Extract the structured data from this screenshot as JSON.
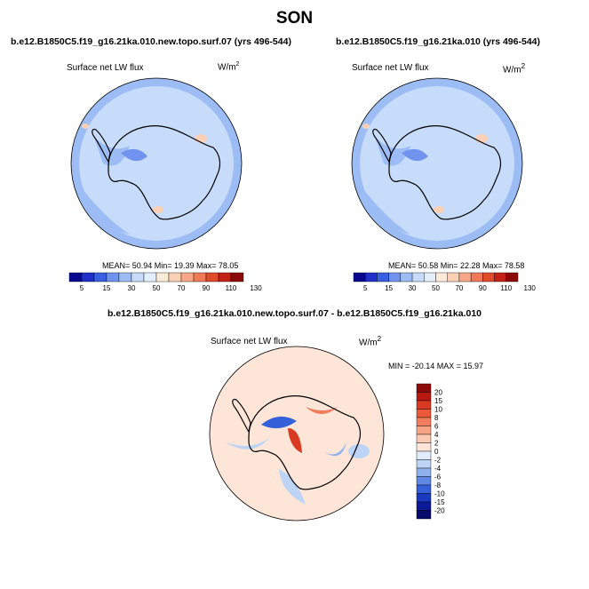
{
  "figure": {
    "title": "SON"
  },
  "panels": [
    {
      "title": "b.e12.B1850C5.f19_g16.21ka.010.new.topo.surf.07 (yrs 496-544)",
      "variable": "Surface net LW flux",
      "units_base": "W/m",
      "units_exp": "2",
      "stats": "MEAN=  50.94  Min=  19.39  Max=  78.05"
    },
    {
      "title": "b.e12.B1850C5.f19_g16.21ka.010 (yrs 496-544)",
      "variable": "Surface net LW flux",
      "units_base": "W/m",
      "units_exp": "2",
      "stats": "MEAN=  50.58  Min=  22.28  Max=  78.58"
    },
    {
      "title": "b.e12.B1850C5.f19_g16.21ka.010.new.topo.surf.07 - b.e12.B1850C5.f19_g16.21ka.010",
      "variable": "Surface net LW flux",
      "units_base": "W/m",
      "units_exp": "2",
      "stats": "MIN = -20.14 MAX =  15.97"
    }
  ],
  "chart_data": [
    {
      "type": "heatmap",
      "projection": "polar stereographic (south pole)",
      "title": "b.e12.B1850C5.f19_g16.21ka.010.new.topo.surf.07 (yrs 496-544)",
      "variable": "Surface net LW flux",
      "units": "W/m2",
      "mean": 50.94,
      "min": 19.39,
      "max": 78.05,
      "colorbar_ticks": [
        "5",
        "15",
        "30",
        "50",
        "70",
        "90",
        "110",
        "130"
      ],
      "colorbar_colors": [
        "#08088c",
        "#1f30c8",
        "#3a5fe0",
        "#6f93ee",
        "#9cbcf5",
        "#c6dcfa",
        "#e4eefc",
        "#fdebd9",
        "#fbd0b6",
        "#f8a888",
        "#f07a58",
        "#e24a2c",
        "#c52015",
        "#8c0a08"
      ],
      "colorbar_orientation": "horizontal"
    },
    {
      "type": "heatmap",
      "projection": "polar stereographic (south pole)",
      "title": "b.e12.B1850C5.f19_g16.21ka.010 (yrs 496-544)",
      "variable": "Surface net LW flux",
      "units": "W/m2",
      "mean": 50.58,
      "min": 22.28,
      "max": 78.58,
      "colorbar_ticks": [
        "5",
        "15",
        "30",
        "50",
        "70",
        "90",
        "110",
        "130"
      ],
      "colorbar_colors": [
        "#08088c",
        "#1f30c8",
        "#3a5fe0",
        "#6f93ee",
        "#9cbcf5",
        "#c6dcfa",
        "#e4eefc",
        "#fdebd9",
        "#fbd0b6",
        "#f8a888",
        "#f07a58",
        "#e24a2c",
        "#c52015",
        "#8c0a08"
      ],
      "colorbar_orientation": "horizontal"
    },
    {
      "type": "heatmap",
      "projection": "polar stereographic (south pole)",
      "title": "b.e12.B1850C5.f19_g16.21ka.010.new.topo.surf.07 - b.e12.B1850C5.f19_g16.21ka.010",
      "variable": "Surface net LW flux",
      "units": "W/m2",
      "min": -20.14,
      "max": 15.97,
      "colorbar_ticks": [
        "20",
        "15",
        "10",
        "8",
        "6",
        "4",
        "2",
        "0",
        "-2",
        "-4",
        "-6",
        "-8",
        "-10",
        "-15",
        "-20"
      ],
      "colorbar_colors": [
        "#8c0a08",
        "#b81a12",
        "#d93a22",
        "#ea5a38",
        "#f27d5c",
        "#f7a385",
        "#fbc9b0",
        "#fde6d8",
        "#e1ecfb",
        "#bdd4f6",
        "#8fb2ef",
        "#5f88e6",
        "#3460d9",
        "#1a38c0",
        "#0c1a98",
        "#060a6a"
      ],
      "colorbar_orientation": "vertical"
    }
  ]
}
